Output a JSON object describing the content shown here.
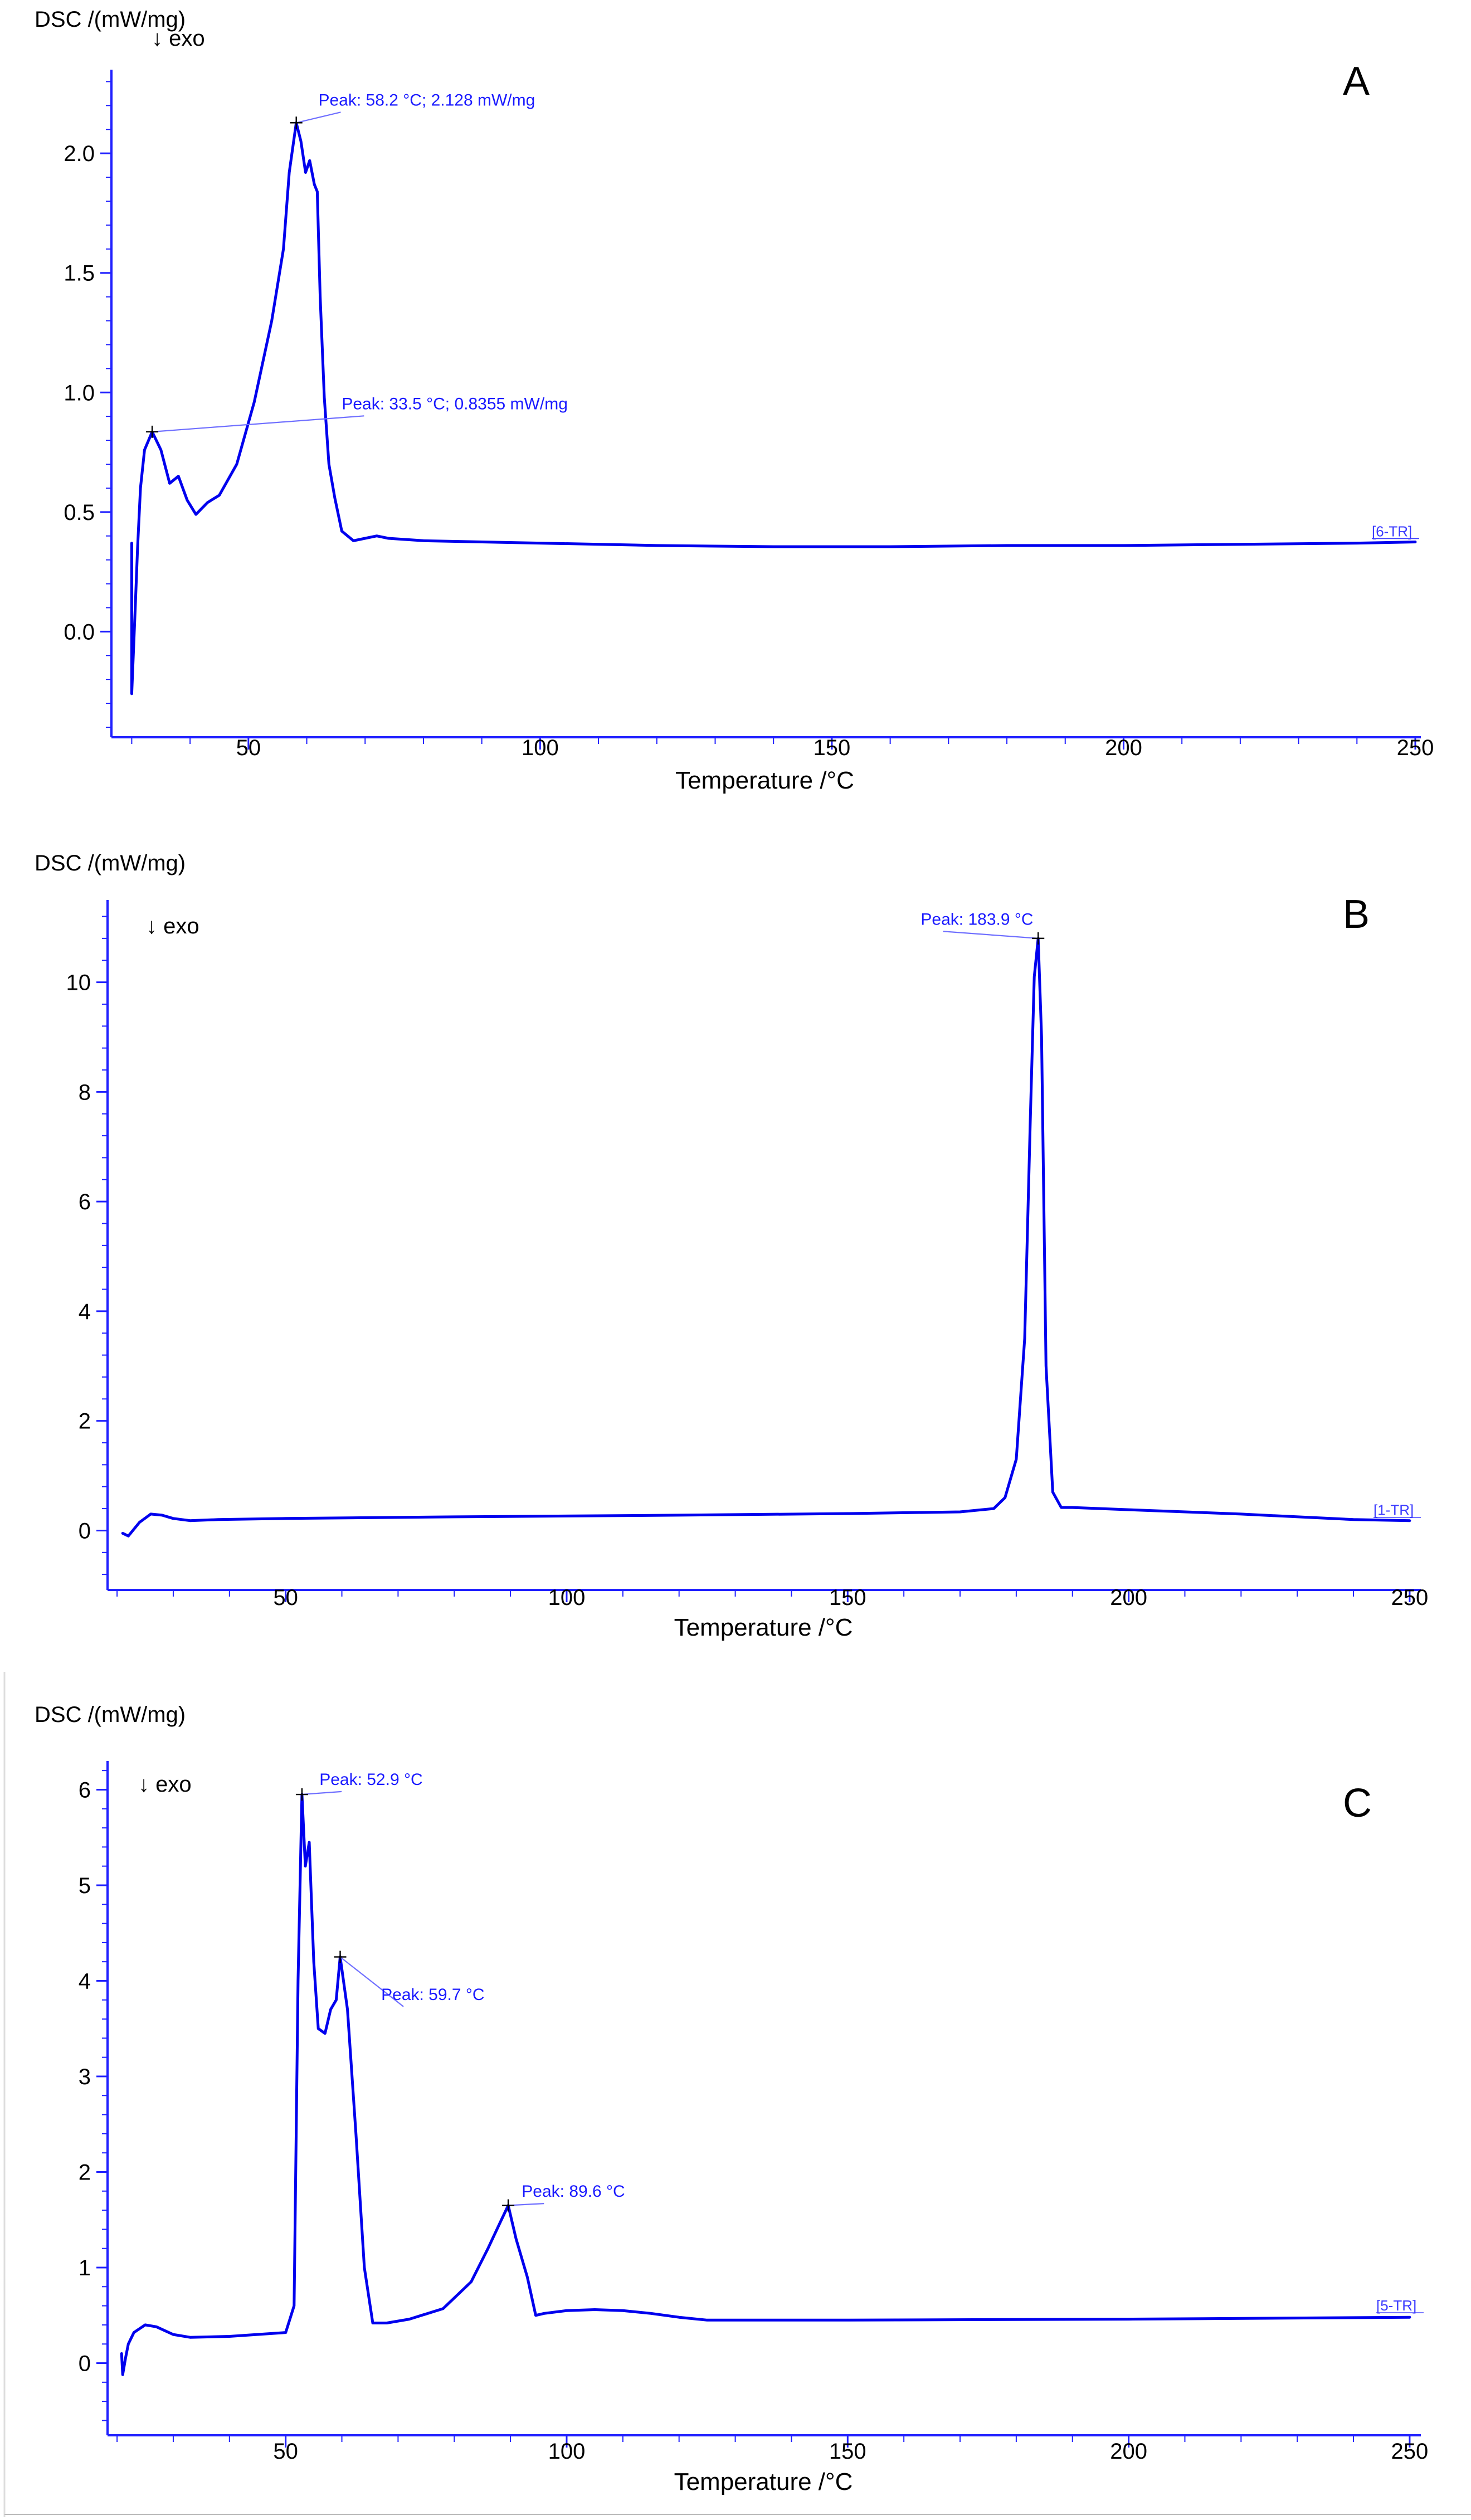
{
  "chart_data": [
    {
      "type": "line",
      "panel_label": "A",
      "ylabel": "DSC /(mW/mg)",
      "xlabel": "Temperature /°C",
      "direction_note": "↓ exo",
      "xlim": [
        27,
        250
      ],
      "ylim": [
        -0.4,
        2.35
      ],
      "xticks": [
        50,
        100,
        150,
        200,
        250
      ],
      "yticks": [
        0.0,
        0.5,
        1.0,
        1.5,
        2.0
      ],
      "ytick_labels": [
        "0.0",
        "0.5",
        "1.0",
        "1.5",
        "2.0"
      ],
      "curve_tag": "[6-TR]",
      "series": [
        {
          "name": "6-TR",
          "x": [
            30,
            30,
            30.6,
            31,
            31.5,
            32.2,
            33.5,
            35,
            36.5,
            38,
            39.5,
            41,
            43,
            45,
            48,
            51,
            54,
            56,
            57,
            58.2,
            59,
            59.8,
            60.5,
            61.3,
            61.8,
            62.3,
            63,
            63.8,
            64.8,
            66,
            68,
            70,
            72,
            74,
            80,
            100,
            120,
            140,
            160,
            180,
            200,
            220,
            240,
            250
          ],
          "y": [
            0.37,
            -0.26,
            0.1,
            0.35,
            0.6,
            0.76,
            0.8355,
            0.76,
            0.62,
            0.65,
            0.55,
            0.49,
            0.54,
            0.57,
            0.7,
            0.96,
            1.3,
            1.6,
            1.92,
            2.128,
            2.05,
            1.92,
            1.97,
            1.87,
            1.84,
            1.4,
            0.98,
            0.7,
            0.56,
            0.42,
            0.38,
            0.39,
            0.4,
            0.39,
            0.38,
            0.37,
            0.36,
            0.355,
            0.355,
            0.36,
            0.36,
            0.365,
            0.37,
            0.375
          ]
        }
      ],
      "annotations": [
        {
          "text": "Peak: 58.2 °C; 2.128 mW/mg",
          "x": 58.2,
          "y": 2.128,
          "text_x": 62,
          "text_y": 2.2
        },
        {
          "text": "Peak: 33.5 °C; 0.8355 mW/mg",
          "x": 33.5,
          "y": 0.8355,
          "text_x": 66,
          "text_y": 0.93
        }
      ]
    },
    {
      "type": "line",
      "panel_label": "B",
      "ylabel": "DSC /(mW/mg)",
      "xlabel": "Temperature /°C",
      "direction_note": "↓ exo",
      "xlim": [
        19,
        251
      ],
      "ylim": [
        -0.9,
        11.5
      ],
      "xticks": [
        50,
        100,
        150,
        200,
        250
      ],
      "yticks": [
        0,
        2,
        4,
        6,
        8,
        10
      ],
      "ytick_labels": [
        "0",
        "2",
        "4",
        "6",
        "8",
        "10"
      ],
      "curve_tag": "[1-TR]",
      "series": [
        {
          "name": "1-TR",
          "x": [
            21,
            22,
            24,
            26,
            28,
            30,
            33,
            38,
            50,
            80,
            120,
            150,
            170,
            176,
            178,
            180,
            181.5,
            182.5,
            183.2,
            183.9,
            184.5,
            185.3,
            186.5,
            188,
            190,
            200,
            220,
            240,
            250
          ],
          "y": [
            -0.05,
            -0.1,
            0.15,
            0.3,
            0.28,
            0.22,
            0.18,
            0.2,
            0.22,
            0.25,
            0.28,
            0.31,
            0.34,
            0.4,
            0.6,
            1.3,
            3.5,
            7.5,
            10.1,
            10.8,
            9.0,
            3.0,
            0.7,
            0.42,
            0.42,
            0.38,
            0.3,
            0.2,
            0.18
          ]
        }
      ],
      "annotations": [
        {
          "text": "Peak: 183.9 °C",
          "x": 183.9,
          "y": 10.8,
          "text_x": 163,
          "text_y": 11.05
        }
      ]
    },
    {
      "type": "line",
      "panel_label": "C",
      "ylabel": "DSC /(mW/mg)",
      "xlabel": "Temperature /°C",
      "direction_note": "↓ exo",
      "xlim": [
        19,
        251
      ],
      "ylim": [
        -0.65,
        6.3
      ],
      "xticks": [
        50,
        100,
        150,
        200,
        250
      ],
      "yticks": [
        0,
        1,
        2,
        3,
        4,
        5,
        6
      ],
      "ytick_labels": [
        "0",
        "1",
        "2",
        "3",
        "4",
        "5",
        "6"
      ],
      "curve_tag": "[5-TR]",
      "series": [
        {
          "name": "5-TR",
          "x": [
            20.8,
            21,
            21.5,
            22,
            23,
            25,
            27,
            30,
            33,
            40,
            50,
            51.5,
            52.2,
            52.9,
            53.5,
            54.2,
            55,
            55.8,
            57,
            58,
            59,
            59.7,
            61,
            62.5,
            64,
            65.5,
            68,
            72,
            78,
            83,
            86,
            88,
            89.6,
            91,
            93,
            94.5,
            96,
            100,
            105,
            110,
            115,
            120,
            125,
            150,
            200,
            250
          ],
          "y": [
            0.1,
            -0.12,
            0.05,
            0.2,
            0.32,
            0.4,
            0.38,
            0.3,
            0.27,
            0.28,
            0.32,
            0.6,
            4.0,
            5.95,
            5.2,
            5.45,
            4.2,
            3.5,
            3.45,
            3.7,
            3.8,
            4.25,
            3.7,
            2.4,
            1.0,
            0.42,
            0.42,
            0.46,
            0.57,
            0.85,
            1.2,
            1.45,
            1.65,
            1.3,
            0.9,
            0.5,
            0.52,
            0.55,
            0.56,
            0.55,
            0.52,
            0.48,
            0.45,
            0.45,
            0.46,
            0.48
          ]
        }
      ],
      "annotations": [
        {
          "text": "Peak: 52.9 °C",
          "x": 52.9,
          "y": 5.95,
          "text_x": 56,
          "text_y": 6.05
        },
        {
          "text": "Peak: 59.7 °C",
          "x": 59.7,
          "y": 4.25,
          "text_x": 67,
          "text_y": 3.8
        },
        {
          "text": "Peak: 89.6 °C",
          "x": 89.6,
          "y": 1.65,
          "text_x": 92,
          "text_y": 1.74
        }
      ]
    }
  ]
}
